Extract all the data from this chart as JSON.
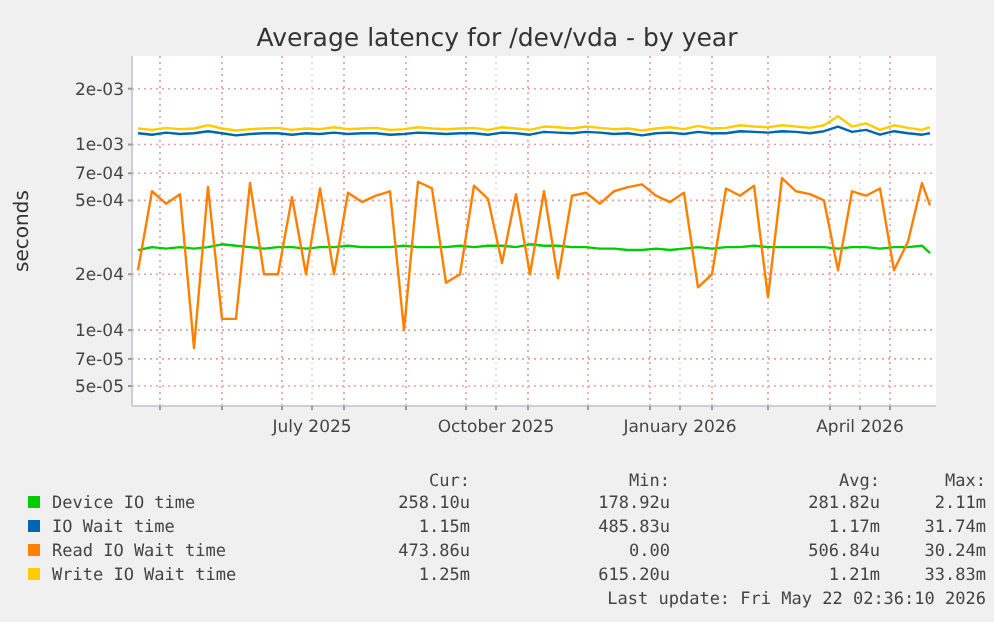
{
  "chart_data": {
    "type": "line",
    "title": "Average latency for /dev/vda - by year",
    "ylabel": "seconds",
    "log": true,
    "grid": true,
    "legend": "bottom",
    "x": [
      "2025-04-20",
      "2025-04-27",
      "2025-05-04",
      "2025-05-11",
      "2025-05-18",
      "2025-05-25",
      "2025-06-01",
      "2025-06-08",
      "2025-06-15",
      "2025-06-22",
      "2025-06-29",
      "2025-07-06",
      "2025-07-13",
      "2025-07-20",
      "2025-07-27",
      "2025-08-03",
      "2025-08-10",
      "2025-08-17",
      "2025-08-24",
      "2025-08-31",
      "2025-09-07",
      "2025-09-14",
      "2025-09-21",
      "2025-09-28",
      "2025-10-05",
      "2025-10-12",
      "2025-10-19",
      "2025-10-26",
      "2025-11-02",
      "2025-11-09",
      "2025-11-16",
      "2025-11-23",
      "2025-11-30",
      "2025-12-07",
      "2025-12-14",
      "2025-12-21",
      "2025-12-28",
      "2026-01-04",
      "2026-01-11",
      "2026-01-18",
      "2026-01-25",
      "2026-02-01",
      "2026-02-08",
      "2026-02-15",
      "2026-02-22",
      "2026-03-01",
      "2026-03-08",
      "2026-03-15",
      "2026-03-22",
      "2026-03-29",
      "2026-04-05",
      "2026-04-12",
      "2026-04-19",
      "2026-04-26",
      "2026-05-03",
      "2026-05-10",
      "2026-05-17",
      "2026-05-21"
    ],
    "xlim": [
      "2025-04-17",
      "2026-05-24"
    ],
    "xticks": [
      {
        "value": "2025-05-01",
        "label": null
      },
      {
        "value": "2025-06-01",
        "label": null
      },
      {
        "value": "2025-07-01",
        "label": null
      },
      {
        "value": "2025-07-16",
        "label": "July 2025"
      },
      {
        "value": "2025-08-01",
        "label": null
      },
      {
        "value": "2025-09-01",
        "label": null
      },
      {
        "value": "2025-10-01",
        "label": null
      },
      {
        "value": "2025-10-16",
        "label": "October 2025"
      },
      {
        "value": "2025-11-01",
        "label": null
      },
      {
        "value": "2025-12-01",
        "label": null
      },
      {
        "value": "2026-01-01",
        "label": null
      },
      {
        "value": "2026-01-16",
        "label": "January 2026"
      },
      {
        "value": "2026-02-01",
        "label": null
      },
      {
        "value": "2026-03-01",
        "label": null
      },
      {
        "value": "2026-04-01",
        "label": null
      },
      {
        "value": "2026-04-16",
        "label": "April 2026"
      },
      {
        "value": "2026-05-01",
        "label": null
      }
    ],
    "ylim": [
      3.9e-05,
      0.003
    ],
    "yticks": [
      {
        "value": 5e-05,
        "label": "5e-05"
      },
      {
        "value": 7e-05,
        "label": "7e-05"
      },
      {
        "value": 0.0001,
        "label": "1e-04"
      },
      {
        "value": 0.0002,
        "label": "2e-04"
      },
      {
        "value": 0.0005,
        "label": "5e-04"
      },
      {
        "value": 0.0007,
        "label": "7e-04"
      },
      {
        "value": 0.001,
        "label": "1e-03"
      },
      {
        "value": 0.002,
        "label": "2e-03"
      }
    ],
    "series": [
      {
        "name": "Device IO time",
        "color": "#00cc00",
        "values": [
          0.00027,
          0.00028,
          0.000275,
          0.00028,
          0.000275,
          0.00028,
          0.00029,
          0.000285,
          0.00028,
          0.000275,
          0.00028,
          0.00028,
          0.000275,
          0.00028,
          0.00028,
          0.000285,
          0.00028,
          0.00028,
          0.00028,
          0.000285,
          0.00028,
          0.00028,
          0.00028,
          0.000285,
          0.00028,
          0.000285,
          0.000285,
          0.00028,
          0.00029,
          0.000285,
          0.000285,
          0.00028,
          0.00028,
          0.000275,
          0.000275,
          0.00027,
          0.00027,
          0.000275,
          0.00027,
          0.000275,
          0.00028,
          0.000275,
          0.00028,
          0.00028,
          0.000285,
          0.00028,
          0.00028,
          0.00028,
          0.00028,
          0.00028,
          0.000275,
          0.00028,
          0.00028,
          0.000275,
          0.00028,
          0.00028,
          0.000285,
          0.00026
        ]
      },
      {
        "name": "IO Wait time",
        "color": "#0066b3",
        "values": [
          0.00115,
          0.00113,
          0.00116,
          0.00114,
          0.00115,
          0.00118,
          0.00115,
          0.00112,
          0.00114,
          0.00115,
          0.00115,
          0.00113,
          0.00115,
          0.00114,
          0.00116,
          0.00114,
          0.00115,
          0.00115,
          0.00113,
          0.00114,
          0.00116,
          0.00115,
          0.00114,
          0.00115,
          0.00115,
          0.00113,
          0.00116,
          0.00115,
          0.00113,
          0.00117,
          0.00116,
          0.00115,
          0.00117,
          0.00116,
          0.00114,
          0.00115,
          0.00112,
          0.00115,
          0.00116,
          0.00114,
          0.00117,
          0.00115,
          0.00115,
          0.00118,
          0.00117,
          0.00116,
          0.00118,
          0.00117,
          0.00115,
          0.00118,
          0.00125,
          0.00117,
          0.0012,
          0.00113,
          0.00118,
          0.00115,
          0.00113,
          0.00115
        ]
      },
      {
        "name": "Read IO Wait time",
        "color": "#ff8000",
        "values": [
          0.00021,
          0.00056,
          0.00048,
          0.00054,
          8e-05,
          0.00059,
          0.000115,
          0.000115,
          0.00062,
          0.0002,
          0.0002,
          0.00052,
          0.0002,
          0.00058,
          0.0002,
          0.00055,
          0.00049,
          0.00053,
          0.00056,
          0.0001,
          0.00063,
          0.00058,
          0.00018,
          0.0002,
          0.0006,
          0.00051,
          0.00023,
          0.00054,
          0.0002,
          0.00056,
          0.00019,
          0.00053,
          0.00055,
          0.00048,
          0.00056,
          0.00059,
          0.00061,
          0.00053,
          0.00049,
          0.00055,
          0.00017,
          0.0002,
          0.00058,
          0.00053,
          0.0006,
          0.00015,
          0.00066,
          0.00056,
          0.00054,
          0.0005,
          0.00021,
          0.00056,
          0.00053,
          0.00058,
          0.00021,
          0.0003,
          0.00062,
          0.00047
        ]
      },
      {
        "name": "Write IO Wait time",
        "color": "#ffcc00",
        "values": [
          0.00122,
          0.0012,
          0.00123,
          0.00121,
          0.00122,
          0.00127,
          0.00122,
          0.00119,
          0.00121,
          0.00122,
          0.00123,
          0.0012,
          0.00122,
          0.00121,
          0.00124,
          0.00121,
          0.00122,
          0.00123,
          0.0012,
          0.00121,
          0.00124,
          0.00122,
          0.00121,
          0.00122,
          0.00123,
          0.0012,
          0.00124,
          0.00122,
          0.0012,
          0.00125,
          0.00124,
          0.00122,
          0.00125,
          0.00123,
          0.00121,
          0.00122,
          0.00119,
          0.00122,
          0.00124,
          0.00121,
          0.00126,
          0.00122,
          0.00123,
          0.00127,
          0.00125,
          0.00124,
          0.00127,
          0.00125,
          0.00123,
          0.00127,
          0.00142,
          0.00125,
          0.0013,
          0.0012,
          0.00127,
          0.00123,
          0.0012,
          0.00124
        ]
      }
    ],
    "annotations": [
      "Cur:",
      "Min:",
      "Avg:",
      "Max:",
      "258.10u",
      "178.92u",
      "281.82u",
      "2.11m",
      "1.15m",
      "485.83u",
      "1.17m",
      "31.74m",
      "473.86u",
      "0.00",
      "506.84u",
      "30.24m",
      "1.25m",
      "615.20u",
      "1.21m",
      "33.83m",
      "Last update: Fri May 22 02:36:10 2026"
    ]
  }
}
